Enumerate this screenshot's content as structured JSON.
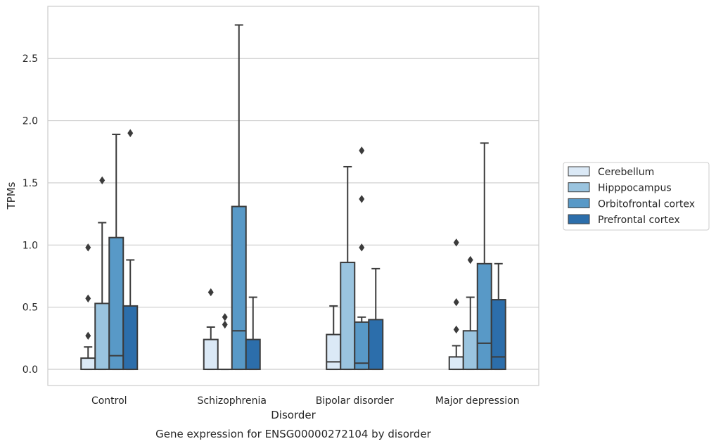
{
  "chart_data": {
    "type": "box",
    "title": "",
    "caption": "Gene expression for ENSG00000272104 by disorder",
    "xlabel": "Disorder",
    "ylabel": "TPMs",
    "ylim": [
      -0.13,
      2.92
    ],
    "yticks": [
      0.0,
      0.5,
      1.0,
      1.5,
      2.0,
      2.5
    ],
    "ytick_labels": [
      "0.0",
      "0.5",
      "1.0",
      "1.5",
      "2.0",
      "2.5"
    ],
    "grid": "horizontal",
    "legend_position": "center-right",
    "categories": [
      "Control",
      "Schizophrenia",
      "Bipolar disorder",
      "Major depression"
    ],
    "series": [
      {
        "name": "Cerebellum",
        "color": "#dbe9f6",
        "boxes": [
          {
            "q1": 0.0,
            "median": 0.0,
            "q3": 0.09,
            "whisker_low": 0.0,
            "whisker_high": 0.18,
            "outliers": [
              0.27,
              0.57,
              0.98
            ]
          },
          {
            "q1": 0.0,
            "median": 0.0,
            "q3": 0.24,
            "whisker_low": 0.0,
            "whisker_high": 0.34,
            "outliers": [
              0.62
            ]
          },
          {
            "q1": 0.0,
            "median": 0.06,
            "q3": 0.28,
            "whisker_low": 0.0,
            "whisker_high": 0.51,
            "outliers": []
          },
          {
            "q1": 0.0,
            "median": 0.0,
            "q3": 0.1,
            "whisker_low": 0.0,
            "whisker_high": 0.19,
            "outliers": [
              0.32,
              0.54,
              1.02
            ]
          }
        ]
      },
      {
        "name": "Hipppocampus",
        "color": "#9ac4df",
        "boxes": [
          {
            "q1": 0.0,
            "median": 0.0,
            "q3": 0.53,
            "whisker_low": 0.0,
            "whisker_high": 1.18,
            "outliers": [
              1.52
            ]
          },
          {
            "q1": 0.0,
            "median": 0.0,
            "q3": 0.0,
            "whisker_low": 0.0,
            "whisker_high": 0.0,
            "outliers": [
              0.36,
              0.42
            ]
          },
          {
            "q1": 0.0,
            "median": 0.0,
            "q3": 0.86,
            "whisker_low": 0.0,
            "whisker_high": 1.63,
            "outliers": []
          },
          {
            "q1": 0.0,
            "median": 0.0,
            "q3": 0.31,
            "whisker_low": 0.0,
            "whisker_high": 0.58,
            "outliers": [
              0.88
            ]
          }
        ]
      },
      {
        "name": "Orbitofrontal cortex",
        "color": "#5899c7",
        "boxes": [
          {
            "q1": 0.0,
            "median": 0.11,
            "q3": 1.06,
            "whisker_low": 0.0,
            "whisker_high": 1.89,
            "outliers": []
          },
          {
            "q1": 0.0,
            "median": 0.31,
            "q3": 1.31,
            "whisker_low": 0.0,
            "whisker_high": 2.77,
            "outliers": []
          },
          {
            "q1": 0.0,
            "median": 0.05,
            "q3": 0.38,
            "whisker_low": 0.0,
            "whisker_high": 0.42,
            "outliers": [
              0.98,
              1.37,
              1.76
            ]
          },
          {
            "q1": 0.0,
            "median": 0.21,
            "q3": 0.85,
            "whisker_low": 0.0,
            "whisker_high": 1.82,
            "outliers": []
          }
        ]
      },
      {
        "name": "Prefrontal cortex",
        "color": "#2c6eab",
        "boxes": [
          {
            "q1": 0.0,
            "median": 0.0,
            "q3": 0.51,
            "whisker_low": 0.0,
            "whisker_high": 0.88,
            "outliers": [
              1.9
            ]
          },
          {
            "q1": 0.0,
            "median": 0.0,
            "q3": 0.24,
            "whisker_low": 0.0,
            "whisker_high": 0.58,
            "outliers": []
          },
          {
            "q1": 0.0,
            "median": 0.0,
            "q3": 0.4,
            "whisker_low": 0.0,
            "whisker_high": 0.81,
            "outliers": []
          },
          {
            "q1": 0.0,
            "median": 0.1,
            "q3": 0.56,
            "whisker_low": 0.0,
            "whisker_high": 0.85,
            "outliers": []
          }
        ]
      }
    ]
  }
}
